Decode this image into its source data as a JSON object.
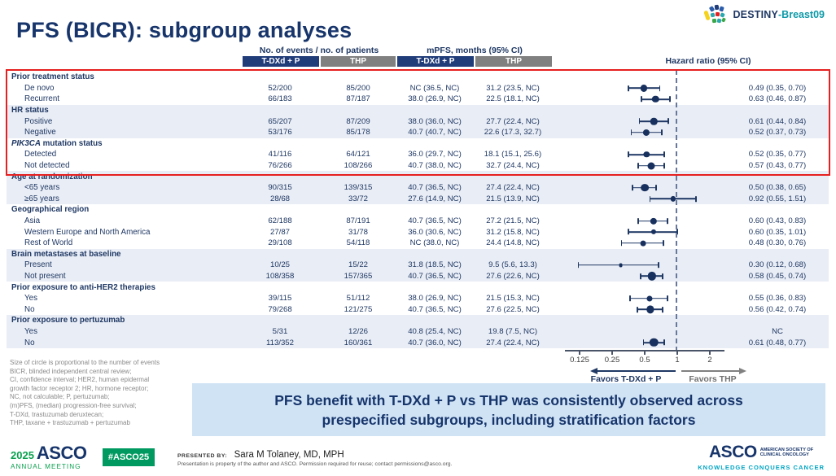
{
  "colors": {
    "navy": "#1f3864",
    "header_blue": "#203c79",
    "header_gray": "#808080",
    "band_blue": "#e9edf5",
    "red_box": "#e62020",
    "banner_bg": "#cfe3f5",
    "asco_green": "#009a60",
    "asco_teal": "#00a5c4",
    "dashed_ref": "#67789b"
  },
  "logo_top": {
    "prefix": "DESTINY",
    "suffix": "-Breast09"
  },
  "title": "PFS (BICR): subgroup analyses",
  "table": {
    "headers": {
      "events": "No. of events / no. of patients",
      "mpfs": "mPFS, months (95% CI)",
      "hr": "Hazard ratio (95% CI)",
      "arm1": "T-DXd + P",
      "arm2": "THP"
    },
    "groups": [
      {
        "label": "Prior treatment status",
        "rows": [
          {
            "label": "De novo",
            "e1": "52/200",
            "e2": "85/200",
            "m1": "NC (36.5, NC)",
            "m2": "31.2 (23.5, NC)",
            "hr_text": "0.49 (0.35, 0.70)",
            "hr": 0.49,
            "lo": 0.35,
            "hi": 0.7
          },
          {
            "label": "Recurrent",
            "e1": "66/183",
            "e2": "87/187",
            "m1": "38.0 (26.9, NC)",
            "m2": "22.5 (18.1, NC)",
            "hr_text": "0.63 (0.46, 0.87)",
            "hr": 0.63,
            "lo": 0.46,
            "hi": 0.87
          }
        ]
      },
      {
        "label": "HR status",
        "rows": [
          {
            "label": "Positive",
            "e1": "65/207",
            "e2": "87/209",
            "m1": "38.0 (36.0, NC)",
            "m2": "27.7 (22.4, NC)",
            "hr_text": "0.61 (0.44, 0.84)",
            "hr": 0.61,
            "lo": 0.44,
            "hi": 0.84
          },
          {
            "label": "Negative",
            "e1": "53/176",
            "e2": "85/178",
            "m1": "40.7 (40.7, NC)",
            "m2": "22.6 (17.3, 32.7)",
            "hr_text": "0.52 (0.37, 0.73)",
            "hr": 0.52,
            "lo": 0.37,
            "hi": 0.73
          }
        ]
      },
      {
        "italic_lead": "PIK3CA",
        "label": "mutation status",
        "rows": [
          {
            "label": "Detected",
            "e1": "41/116",
            "e2": "64/121",
            "m1": "36.0 (29.7, NC)",
            "m2": "18.1 (15.1, 25.6)",
            "hr_text": "0.52 (0.35, 0.77)",
            "hr": 0.52,
            "lo": 0.35,
            "hi": 0.77
          },
          {
            "label": "Not detected",
            "e1": "76/266",
            "e2": "108/266",
            "m1": "40.7 (38.0, NC)",
            "m2": "32.7 (24.4, NC)",
            "hr_text": "0.57 (0.43, 0.77)",
            "hr": 0.57,
            "lo": 0.43,
            "hi": 0.77
          }
        ]
      },
      {
        "label": "Age at randomization",
        "rows": [
          {
            "label": "<65 years",
            "e1": "90/315",
            "e2": "139/315",
            "m1": "40.7 (36.5, NC)",
            "m2": "27.4 (22.4, NC)",
            "hr_text": "0.50 (0.38, 0.65)",
            "hr": 0.5,
            "lo": 0.38,
            "hi": 0.65
          },
          {
            "label": "≥65 years",
            "e1": "28/68",
            "e2": "33/72",
            "m1": "27.6 (14.9, NC)",
            "m2": "21.5 (13.9, NC)",
            "hr_text": "0.92 (0.55, 1.51)",
            "hr": 0.92,
            "lo": 0.55,
            "hi": 1.51
          }
        ]
      },
      {
        "label": "Geographical region",
        "rows": [
          {
            "label": "Asia",
            "e1": "62/188",
            "e2": "87/191",
            "m1": "40.7 (36.5, NC)",
            "m2": "27.2 (21.5, NC)",
            "hr_text": "0.60 (0.43, 0.83)",
            "hr": 0.6,
            "lo": 0.43,
            "hi": 0.83
          },
          {
            "label": "Western Europe and North America",
            "e1": "27/87",
            "e2": "31/78",
            "m1": "36.0 (30.6, NC)",
            "m2": "31.2 (15.8, NC)",
            "hr_text": "0.60 (0.35, 1.01)",
            "hr": 0.6,
            "lo": 0.35,
            "hi": 1.01
          },
          {
            "label": "Rest of World",
            "e1": "29/108",
            "e2": "54/118",
            "m1": "NC (38.0, NC)",
            "m2": "24.4 (14.8, NC)",
            "hr_text": "0.48 (0.30, 0.76)",
            "hr": 0.48,
            "lo": 0.3,
            "hi": 0.76
          }
        ]
      },
      {
        "label": "Brain metastases at baseline",
        "rows": [
          {
            "label": "Present",
            "e1": "10/25",
            "e2": "15/22",
            "m1": "31.8 (18.5, NC)",
            "m2": "9.5 (5.6, 13.3)",
            "hr_text": "0.30 (0.12, 0.68)",
            "hr": 0.3,
            "lo": 0.12,
            "hi": 0.68
          },
          {
            "label": "Not present",
            "e1": "108/358",
            "e2": "157/365",
            "m1": "40.7 (36.5, NC)",
            "m2": "27.6 (22.6, NC)",
            "hr_text": "0.58 (0.45, 0.74)",
            "hr": 0.58,
            "lo": 0.45,
            "hi": 0.74
          }
        ]
      },
      {
        "label": "Prior exposure to anti-HER2 therapies",
        "rows": [
          {
            "label": "Yes",
            "e1": "39/115",
            "e2": "51/112",
            "m1": "38.0 (26.9, NC)",
            "m2": "21.5 (15.3, NC)",
            "hr_text": "0.55 (0.36, 0.83)",
            "hr": 0.55,
            "lo": 0.36,
            "hi": 0.83
          },
          {
            "label": "No",
            "e1": "79/268",
            "e2": "121/275",
            "m1": "40.7 (36.5, NC)",
            "m2": "27.6 (22.5, NC)",
            "hr_text": "0.56 (0.42, 0.74)",
            "hr": 0.56,
            "lo": 0.42,
            "hi": 0.74
          }
        ]
      },
      {
        "label": "Prior exposure to pertuzumab",
        "rows": [
          {
            "label": "Yes",
            "e1": "5/31",
            "e2": "12/26",
            "m1": "40.8 (25.4, NC)",
            "m2": "19.8 (7.5, NC)",
            "hr_text": "NC",
            "hr": null,
            "lo": null,
            "hi": null
          },
          {
            "label": "No",
            "e1": "113/352",
            "e2": "160/361",
            "m1": "40.7 (36.0, NC)",
            "m2": "27.4 (22.4, NC)",
            "hr_text": "0.61 (0.48, 0.77)",
            "hr": 0.61,
            "lo": 0.48,
            "hi": 0.77
          }
        ]
      }
    ]
  },
  "forest": {
    "ticks": [
      0.125,
      0.25,
      0.5,
      1,
      2
    ],
    "tick_labels": [
      "0.125",
      "0.25",
      "0.5",
      "1",
      "2"
    ],
    "reference": 1,
    "favors_left": "Favors T-DXd + P",
    "favors_right": "Favors THP"
  },
  "footnotes": [
    "Size of circle is proportional to the number of events",
    "BICR, blinded independent central review;",
    "CI, confidence interval; HER2, human epidermal",
    "growth factor receptor 2; HR, hormone receptor;",
    "NC, not calculable; P, pertuzumab;",
    "(m)PFS, (median) progression-free survival;",
    "T-DXd, trastuzumab deruxtecan;",
    "THP, taxane + trastuzumab + pertuzumab"
  ],
  "banner": {
    "line1": "PFS benefit with T-DXd + P vs THP was consistently observed across",
    "line2": "prespecified subgroups, including stratification factors"
  },
  "footer": {
    "meeting_year": "2025",
    "meeting_org": "ASCO",
    "meeting_sub": "ANNUAL MEETING",
    "hashtag": "#ASCO25",
    "presented_by_label": "PRESENTED BY:",
    "presenter": "Sara M Tolaney, MD, MPH",
    "disclaimer": "Presentation is property of the author and ASCO. Permission required for reuse; contact permissions@asco.org.",
    "asco_name": "ASCO",
    "asco_line1": "AMERICAN SOCIETY OF",
    "asco_line2": "CLINICAL ONCOLOGY",
    "asco_motto": "KNOWLEDGE CONQUERS CANCER"
  },
  "chart_data": {
    "type": "scatter",
    "subtype": "forest-plot",
    "title": "PFS (BICR): subgroup analyses",
    "xlabel": "Hazard ratio (95% CI)",
    "x_scale": "log",
    "x_ticks": [
      0.125,
      0.25,
      0.5,
      1,
      2
    ],
    "reference_line": 1,
    "marker_note": "Size of circle is proportional to the number of events",
    "direction_labels": {
      "left_of_1": "Favors T-DXd + P",
      "right_of_1": "Favors THP"
    },
    "series": [
      {
        "group": "Prior treatment status",
        "subgroup": "De novo",
        "hr": 0.49,
        "ci": [
          0.35,
          0.7
        ]
      },
      {
        "group": "Prior treatment status",
        "subgroup": "Recurrent",
        "hr": 0.63,
        "ci": [
          0.46,
          0.87
        ]
      },
      {
        "group": "HR status",
        "subgroup": "Positive",
        "hr": 0.61,
        "ci": [
          0.44,
          0.84
        ]
      },
      {
        "group": "HR status",
        "subgroup": "Negative",
        "hr": 0.52,
        "ci": [
          0.37,
          0.73
        ]
      },
      {
        "group": "PIK3CA mutation status",
        "subgroup": "Detected",
        "hr": 0.52,
        "ci": [
          0.35,
          0.77
        ]
      },
      {
        "group": "PIK3CA mutation status",
        "subgroup": "Not detected",
        "hr": 0.57,
        "ci": [
          0.43,
          0.77
        ]
      },
      {
        "group": "Age at randomization",
        "subgroup": "<65 years",
        "hr": 0.5,
        "ci": [
          0.38,
          0.65
        ]
      },
      {
        "group": "Age at randomization",
        "subgroup": "≥65 years",
        "hr": 0.92,
        "ci": [
          0.55,
          1.51
        ]
      },
      {
        "group": "Geographical region",
        "subgroup": "Asia",
        "hr": 0.6,
        "ci": [
          0.43,
          0.83
        ]
      },
      {
        "group": "Geographical region",
        "subgroup": "Western Europe and North America",
        "hr": 0.6,
        "ci": [
          0.35,
          1.01
        ]
      },
      {
        "group": "Geographical region",
        "subgroup": "Rest of World",
        "hr": 0.48,
        "ci": [
          0.3,
          0.76
        ]
      },
      {
        "group": "Brain metastases at baseline",
        "subgroup": "Present",
        "hr": 0.3,
        "ci": [
          0.12,
          0.68
        ]
      },
      {
        "group": "Brain metastases at baseline",
        "subgroup": "Not present",
        "hr": 0.58,
        "ci": [
          0.45,
          0.74
        ]
      },
      {
        "group": "Prior exposure to anti-HER2 therapies",
        "subgroup": "Yes",
        "hr": 0.55,
        "ci": [
          0.36,
          0.83
        ]
      },
      {
        "group": "Prior exposure to anti-HER2 therapies",
        "subgroup": "No",
        "hr": 0.56,
        "ci": [
          0.42,
          0.74
        ]
      },
      {
        "group": "Prior exposure to pertuzumab",
        "subgroup": "Yes",
        "hr": null,
        "ci": null,
        "note": "NC"
      },
      {
        "group": "Prior exposure to pertuzumab",
        "subgroup": "No",
        "hr": 0.61,
        "ci": [
          0.48,
          0.77
        ]
      }
    ]
  }
}
